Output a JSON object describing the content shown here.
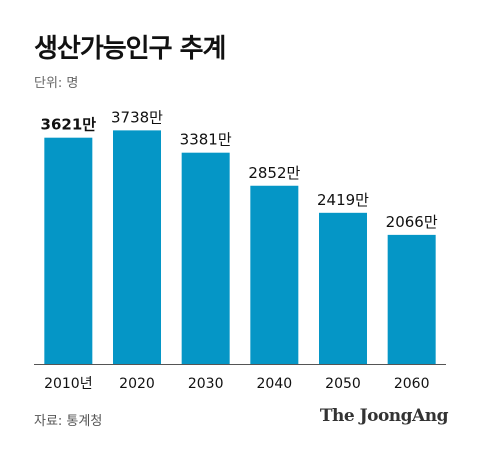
{
  "header": {
    "title": "생산가능인구 추계",
    "unit": "단위: 명"
  },
  "footer": {
    "source": "자료: 통계청",
    "brand": "The JoongAng"
  },
  "colors": {
    "bar": "#0596c6",
    "axis": "#555555",
    "text": "#111111"
  },
  "chart_data": {
    "type": "bar",
    "categories": [
      "2010년",
      "2020",
      "2030",
      "2040",
      "2050",
      "2060"
    ],
    "values": [
      3621,
      3738,
      3381,
      2852,
      2419,
      2066
    ],
    "data_labels": [
      "3621만",
      "3738만",
      "3381만",
      "2852만",
      "2419만",
      "2066만"
    ],
    "highlight_index": 0,
    "title": "생산가능인구 추계",
    "unit": "단위: 명",
    "ylim": [
      0,
      4000
    ],
    "grid": false,
    "legend": "none"
  }
}
